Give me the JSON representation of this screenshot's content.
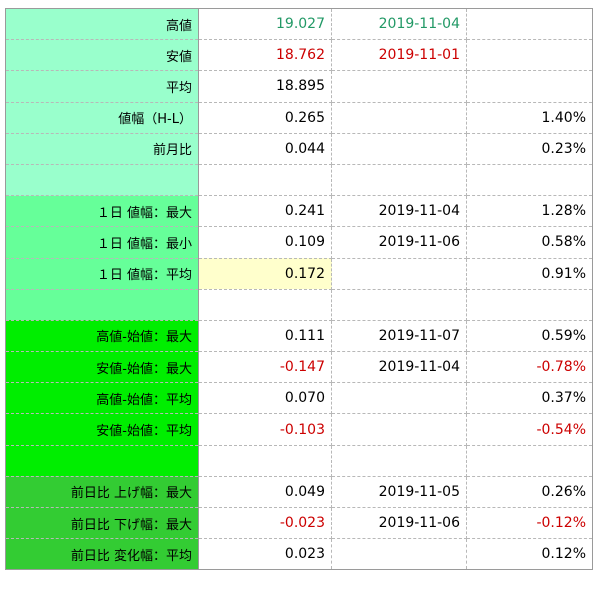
{
  "colors": {
    "group1": "#99ffcc",
    "group2": "#66ff99",
    "group3": "#00ee00",
    "group4": "#33cc33",
    "highlight": "#ffffcc",
    "positive_text": "#229966",
    "negative_text": "#cc0000"
  },
  "rows": [
    {
      "label": "高値",
      "value": "19.027",
      "date": "2019-11-04",
      "pct": ""
    },
    {
      "label": "安値",
      "value": "18.762",
      "date": "2019-11-01",
      "pct": ""
    },
    {
      "label": "平均",
      "value": "18.895",
      "date": "",
      "pct": ""
    },
    {
      "label": "値幅（H-L）",
      "value": "0.265",
      "date": "",
      "pct": "1.40%"
    },
    {
      "label": "前月比",
      "value": "0.044",
      "date": "",
      "pct": "0.23%"
    },
    {
      "label": "",
      "value": "",
      "date": "",
      "pct": ""
    },
    {
      "label": "１日 値幅：最大",
      "value": "0.241",
      "date": "2019-11-04",
      "pct": "1.28%"
    },
    {
      "label": "１日 値幅：最小",
      "value": "0.109",
      "date": "2019-11-06",
      "pct": "0.58%"
    },
    {
      "label": "１日 値幅：平均",
      "value": "0.172",
      "date": "",
      "pct": "0.91%"
    },
    {
      "label": "",
      "value": "",
      "date": "",
      "pct": ""
    },
    {
      "label": "高値-始値：最大",
      "value": "0.111",
      "date": "2019-11-07",
      "pct": "0.59%"
    },
    {
      "label": "安値-始値：最大",
      "value": "-0.147",
      "date": "2019-11-04",
      "pct": "-0.78%"
    },
    {
      "label": "高値-始値：平均",
      "value": "0.070",
      "date": "",
      "pct": "0.37%"
    },
    {
      "label": "安値-始値：平均",
      "value": "-0.103",
      "date": "",
      "pct": "-0.54%"
    },
    {
      "label": "",
      "value": "",
      "date": "",
      "pct": ""
    },
    {
      "label": "前日比 上げ幅：最大",
      "value": "0.049",
      "date": "2019-11-05",
      "pct": "0.26%"
    },
    {
      "label": "前日比 下げ幅：最大",
      "value": "-0.023",
      "date": "2019-11-06",
      "pct": "-0.12%"
    },
    {
      "label": "前日比 変化幅：平均",
      "value": "0.023",
      "date": "",
      "pct": "0.12%"
    }
  ]
}
